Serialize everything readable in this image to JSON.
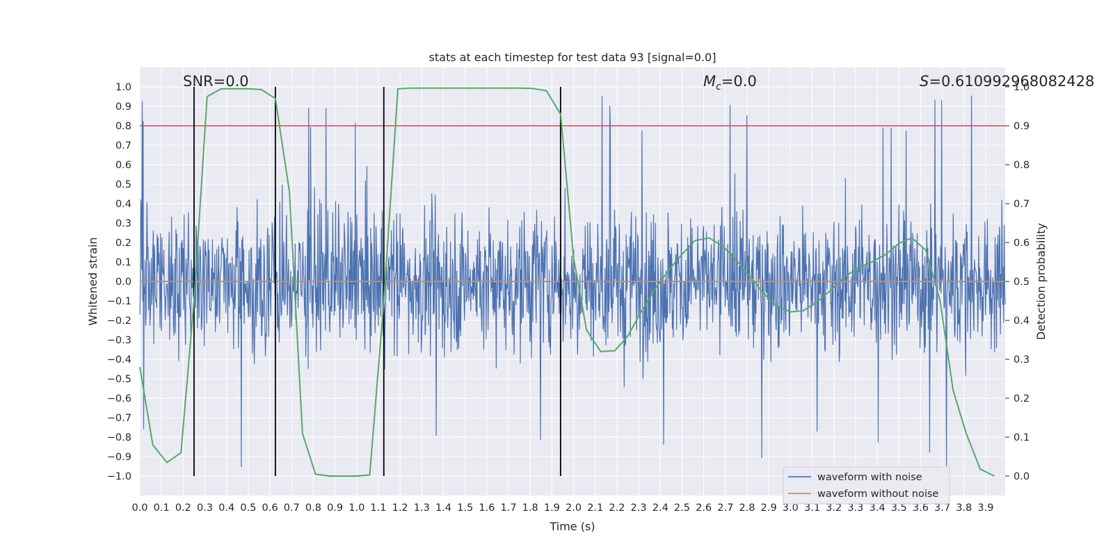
{
  "chart_data": {
    "type": "line",
    "title": "stats at each timestep for test data 93 [signal=0.0]",
    "xlabel": "Time (s)",
    "ylabel": "Whitened strain",
    "ylabel_right": "Detection probability",
    "xlim": [
      0.0,
      3.99
    ],
    "ylim": [
      -1.1,
      1.1
    ],
    "ylim_right": [
      -0.05,
      1.05
    ],
    "x_ticks": [
      "0.0",
      "0.1",
      "0.2",
      "0.3",
      "0.4",
      "0.5",
      "0.6",
      "0.7",
      "0.8",
      "0.9",
      "1.0",
      "1.1",
      "1.2",
      "1.3",
      "1.4",
      "1.5",
      "1.6",
      "1.7",
      "1.8",
      "1.9",
      "2.0",
      "2.1",
      "2.2",
      "2.3",
      "2.4",
      "2.5",
      "2.6",
      "2.7",
      "2.8",
      "2.9",
      "3.0",
      "3.1",
      "3.2",
      "3.3",
      "3.4",
      "3.5",
      "3.6",
      "3.7",
      "3.8",
      "3.9"
    ],
    "y_ticks": [
      "−1.0",
      "−0.9",
      "−0.8",
      "−0.7",
      "−0.6",
      "−0.5",
      "−0.4",
      "−0.3",
      "−0.2",
      "−0.1",
      "0.0",
      "0.1",
      "0.2",
      "0.3",
      "0.4",
      "0.5",
      "0.6",
      "0.7",
      "0.8",
      "0.9",
      "1.0"
    ],
    "y_ticks_right": [
      "0.0",
      "0.1",
      "0.2",
      "0.3",
      "0.4",
      "0.5",
      "0.6",
      "0.7",
      "0.8",
      "0.9",
      "1.0"
    ],
    "annotations": {
      "snr": "SNR=0.0",
      "mc_symbol": "M",
      "mc_subscript": "c",
      "mc_value": "=0.0",
      "s_symbol": "S",
      "s_value": "=0.610992968082428"
    },
    "series": [
      {
        "name": "waveform with noise",
        "color": "#4c72b0",
        "description": "dense whitened noise, roughly uniform, peak values near ±1.0",
        "x_range": [
          0.0,
          3.99
        ],
        "envelope_typical": [
          -0.55,
          0.6
        ],
        "envelope_peak": [
          -1.0,
          0.97
        ]
      },
      {
        "name": "waveform without noise",
        "color": "#dd8452",
        "x": [
          0.0,
          3.99
        ],
        "y": [
          0.0,
          0.0
        ]
      },
      {
        "color": "#55a868",
        "axis": "right",
        "x": [
          0.0,
          0.06,
          0.125,
          0.19,
          0.25,
          0.31,
          0.375,
          0.44,
          0.5,
          0.56,
          0.625,
          0.69,
          0.75,
          0.81,
          0.875,
          0.94,
          1.0,
          1.06,
          1.125,
          1.19,
          1.25,
          1.31,
          1.375,
          1.44,
          1.5,
          1.56,
          1.625,
          1.69,
          1.75,
          1.81,
          1.875,
          1.94,
          2.0,
          2.06,
          2.125,
          2.19,
          2.25,
          2.31,
          2.375,
          2.44,
          2.5,
          2.56,
          2.625,
          2.69,
          2.75,
          2.81,
          2.875,
          2.94,
          3.0,
          3.06,
          3.125,
          3.19,
          3.25,
          3.31,
          3.375,
          3.44,
          3.5,
          3.56,
          3.625,
          3.69,
          3.75,
          3.81,
          3.875,
          3.94
        ],
        "y": [
          0.28,
          0.08,
          0.035,
          0.06,
          0.45,
          0.975,
          0.995,
          0.995,
          0.995,
          0.993,
          0.97,
          0.73,
          0.11,
          0.005,
          0.0,
          0.0,
          0.0,
          0.003,
          0.45,
          0.995,
          0.997,
          0.997,
          0.997,
          0.997,
          0.997,
          0.997,
          0.997,
          0.997,
          0.997,
          0.996,
          0.99,
          0.93,
          0.56,
          0.375,
          0.32,
          0.322,
          0.36,
          0.42,
          0.48,
          0.53,
          0.57,
          0.605,
          0.612,
          0.59,
          0.555,
          0.515,
          0.47,
          0.435,
          0.422,
          0.425,
          0.448,
          0.48,
          0.512,
          0.535,
          0.55,
          0.57,
          0.598,
          0.612,
          0.58,
          0.45,
          0.22,
          0.11,
          0.018,
          0.0
        ]
      }
    ],
    "threshold_line": {
      "color": "#c44e52",
      "y_right": 0.9
    },
    "vertical_lines": {
      "color": "#000000",
      "x": [
        0.25,
        0.625,
        1.125,
        1.94
      ],
      "y_right_range": [
        0.0,
        1.0
      ]
    },
    "legend": {
      "position": "lower-right",
      "entries": [
        {
          "label": "waveform with noise",
          "color": "#4c72b0"
        },
        {
          "label": "waveform without noise",
          "color": "#dd8452"
        }
      ]
    },
    "style": {
      "background": "#eaeaf2",
      "grid": true,
      "grid_color": "#ffffff"
    }
  }
}
